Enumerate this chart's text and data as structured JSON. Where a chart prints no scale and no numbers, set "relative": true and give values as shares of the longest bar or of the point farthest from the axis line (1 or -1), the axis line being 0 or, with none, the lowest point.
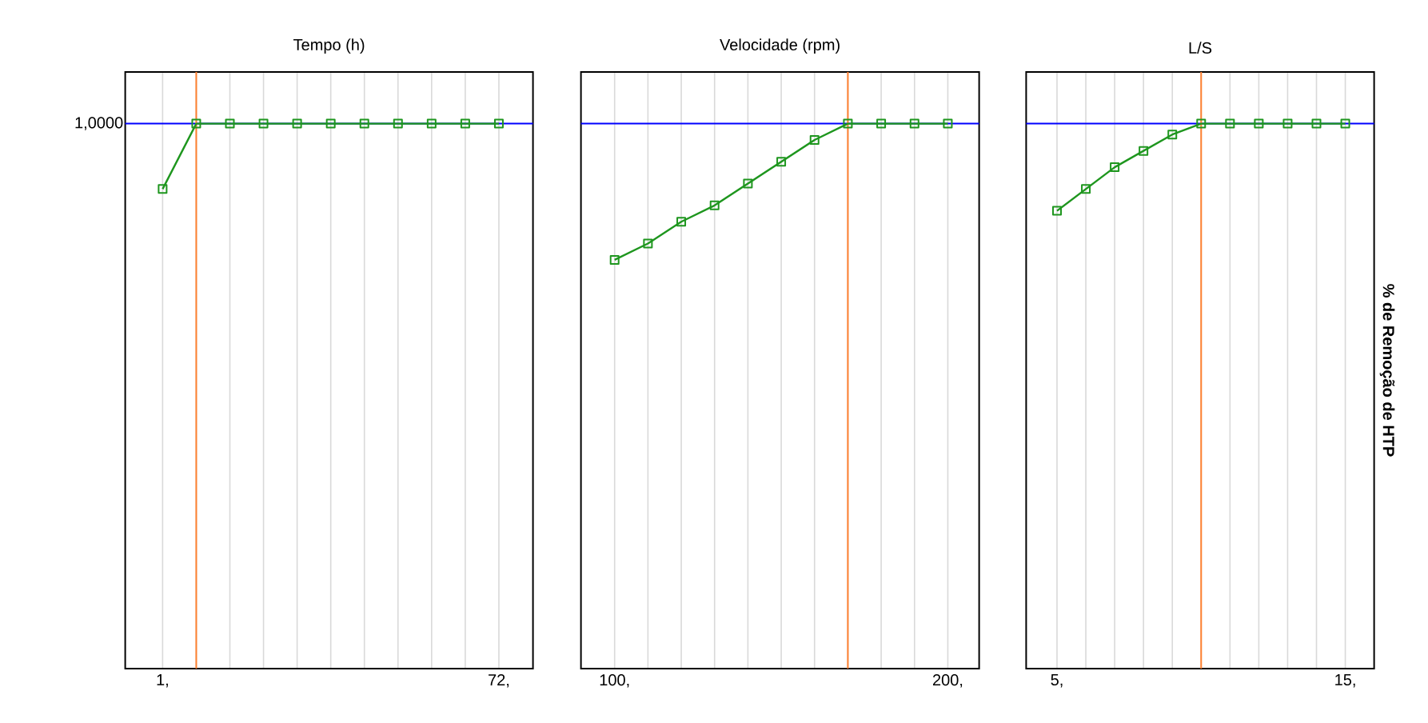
{
  "chart_data": [
    {
      "type": "line",
      "title": "Tempo (h)",
      "relative": true,
      "grid": true,
      "marker": "square",
      "line_style": "solid",
      "tick_labels": "x",
      "x": [
        1,
        8.1,
        15.2,
        22.3,
        29.4,
        36.5,
        43.6,
        50.7,
        57.8,
        64.9,
        72
      ],
      "xlim": [
        -6.9,
        79.2
      ],
      "xticks": [
        {
          "value": 1,
          "label": "1,"
        },
        {
          "value": 72,
          "label": "72,"
        }
      ],
      "series": [
        {
          "color": "#1e961e",
          "values": [
            0.88,
            1,
            1,
            1,
            1,
            1,
            1,
            1,
            1,
            1,
            1
          ]
        }
      ],
      "ref_lines": [
        {
          "axis": "y",
          "value": 1,
          "label": "1,0000",
          "color": "#0000ff"
        },
        {
          "axis": "x",
          "value": 8.1,
          "color": "#ff8030"
        }
      ]
    },
    {
      "type": "line",
      "title": "Velocidade (rpm)",
      "relative": true,
      "grid": true,
      "marker": "square",
      "line_style": "solid",
      "tick_labels": "x",
      "x": [
        100,
        110,
        120,
        130,
        140,
        150,
        160,
        170,
        180,
        190,
        200
      ],
      "xlim": [
        89.9,
        209.4
      ],
      "xticks": [
        {
          "value": 100,
          "label": "100,"
        },
        {
          "value": 200,
          "label": "200,"
        }
      ],
      "series": [
        {
          "color": "#1e961e",
          "values": [
            0.75,
            0.78,
            0.82,
            0.85,
            0.89,
            0.93,
            0.97,
            1,
            1,
            1,
            1
          ]
        }
      ],
      "ref_lines": [
        {
          "axis": "y",
          "value": 1,
          "color": "#0000ff"
        },
        {
          "axis": "x",
          "value": 170,
          "color": "#ff8030"
        }
      ]
    },
    {
      "type": "line",
      "title": "L/S",
      "ylabel": "% de Remoção de HTP",
      "relative": true,
      "grid": true,
      "marker": "square",
      "line_style": "solid",
      "tick_labels": "x",
      "x": [
        5,
        6,
        7,
        8,
        9,
        10,
        11,
        12,
        13,
        14,
        15
      ],
      "xlim": [
        3.93,
        16.0
      ],
      "xticks": [
        {
          "value": 5,
          "label": "5,"
        },
        {
          "value": 15,
          "label": "15,"
        }
      ],
      "series": [
        {
          "color": "#1e961e",
          "values": [
            0.84,
            0.88,
            0.92,
            0.95,
            0.98,
            1,
            1,
            1,
            1,
            1,
            1
          ]
        }
      ],
      "ref_lines": [
        {
          "axis": "y",
          "value": 1,
          "color": "#0000ff"
        },
        {
          "axis": "x",
          "value": 10,
          "color": "#ff8030"
        }
      ]
    }
  ]
}
